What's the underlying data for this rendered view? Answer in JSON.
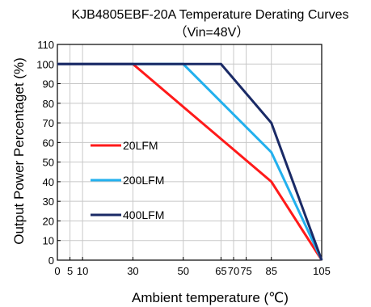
{
  "chart_data": {
    "type": "line",
    "title": "KJB4805EBF-20A  Temperature Derating Curves",
    "subtitle": "（Vin=48V）",
    "xlabel": "Ambient temperature (℃)",
    "ylabel": "Output Power Percentaget (%)",
    "xlim": [
      0,
      105
    ],
    "ylim": [
      0,
      110
    ],
    "x_ticks": [
      0,
      5,
      10,
      30,
      50,
      65,
      70,
      75,
      85,
      105
    ],
    "y_ticks": [
      0,
      10,
      20,
      30,
      40,
      50,
      60,
      70,
      80,
      90,
      100,
      110
    ],
    "grid": true,
    "legend_position": "left",
    "series": [
      {
        "name": "20LFM",
        "color": "#ff1a1a",
        "x": [
          0,
          30,
          85,
          105
        ],
        "y": [
          100,
          100,
          40,
          0
        ]
      },
      {
        "name": "200LFM",
        "color": "#22b0ee",
        "x": [
          0,
          50,
          85,
          105
        ],
        "y": [
          100,
          100,
          55,
          0
        ]
      },
      {
        "name": "400LFM",
        "color": "#1a2a66",
        "x": [
          0,
          65,
          85,
          105
        ],
        "y": [
          100,
          100,
          70,
          0
        ]
      }
    ]
  }
}
